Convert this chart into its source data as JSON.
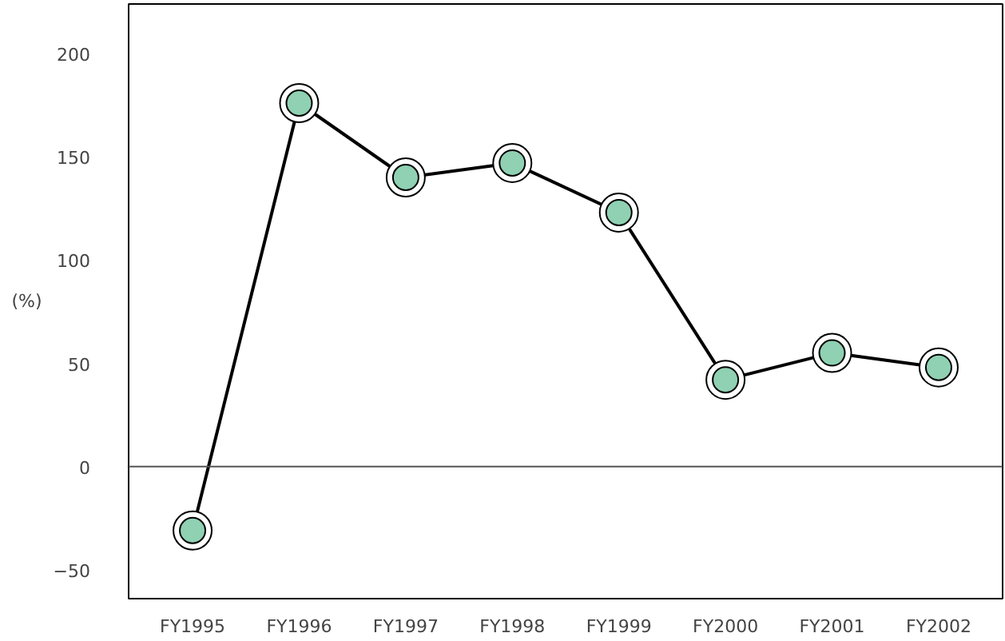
{
  "chart_data": {
    "type": "line",
    "ylabel": "(%)",
    "categories": [
      "FY1995",
      "FY1996",
      "FY1997",
      "FY1998",
      "FY1999",
      "FY2000",
      "FY2001",
      "FY2002"
    ],
    "series": [
      {
        "color": "#8fd1b2",
        "values": [
          -31,
          176,
          140,
          147,
          123,
          42,
          55,
          48
        ]
      }
    ],
    "ylim": [
      -64,
      224
    ],
    "yticks": [
      -50,
      0,
      50,
      100,
      150,
      200
    ],
    "ref_lines": [
      {
        "axis": "y",
        "value": 0,
        "color": "#555555"
      }
    ],
    "grid": false,
    "marker": "circle",
    "line_style": "solid"
  }
}
